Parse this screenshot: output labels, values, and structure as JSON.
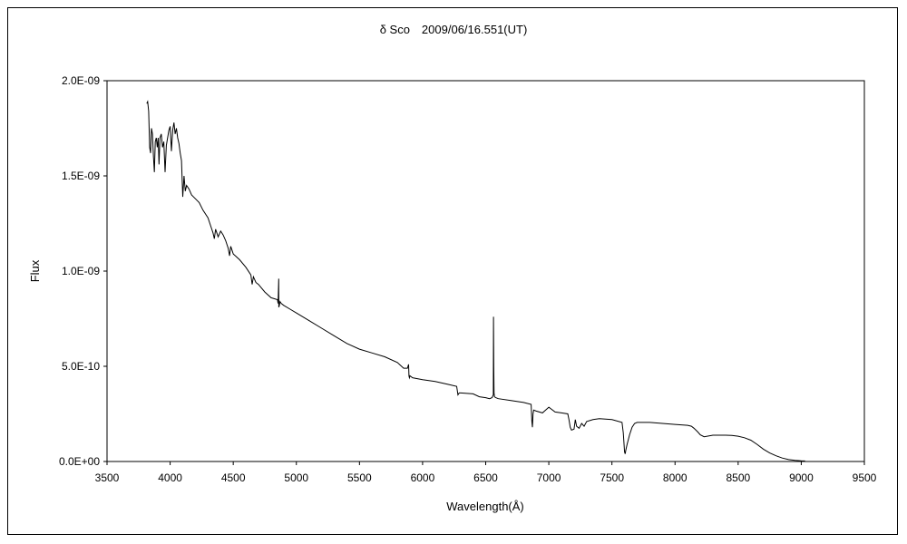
{
  "chart_data": {
    "type": "line",
    "title": "δ Sco　2009/06/16.551(UT)",
    "xlabel": "Wavelength(Å)",
    "ylabel": "Flux",
    "xlim": [
      3500,
      9500
    ],
    "ylim": [
      0,
      2e-09
    ],
    "x_ticks": [
      3500,
      4000,
      4500,
      5000,
      5500,
      6000,
      6500,
      7000,
      7500,
      8000,
      8500,
      9000,
      9500
    ],
    "x_tick_labels": [
      "3500",
      "4000",
      "4500",
      "5000",
      "5500",
      "6000",
      "6500",
      "7000",
      "7500",
      "8000",
      "8500",
      "9000",
      "9500"
    ],
    "y_ticks": [
      0,
      5e-10,
      1e-09,
      1.5e-09,
      2e-09
    ],
    "y_tick_labels": [
      "0.0E+00",
      "5.0E-10",
      "1.0E-09",
      "1.5E-09",
      "2.0E-09"
    ],
    "grid": false,
    "legend": "none",
    "line_color": "#000000",
    "series": [
      {
        "x": [
          3815,
          3822,
          3830,
          3838,
          3845,
          3852,
          3860,
          3868,
          3875,
          3882,
          3890,
          3898,
          3905,
          3912,
          3920,
          3930,
          3940,
          3950,
          3960,
          3970,
          3980,
          3990,
          4000,
          4010,
          4020,
          4030,
          4040,
          4050,
          4060,
          4070,
          4080,
          4090,
          4100,
          4110,
          4120,
          4130,
          4150,
          4170,
          4200,
          4230,
          4260,
          4300,
          4320,
          4340,
          4350,
          4360,
          4380,
          4400,
          4420,
          4440,
          4460,
          4471,
          4480,
          4500,
          4550,
          4600,
          4640,
          4650,
          4660,
          4680,
          4700,
          4750,
          4800,
          4850,
          4855,
          4860,
          4861,
          4865,
          4870,
          4880,
          4900,
          4950,
          5000,
          5100,
          5200,
          5300,
          5400,
          5500,
          5600,
          5700,
          5800,
          5850,
          5880,
          5889,
          5892,
          5896,
          5900,
          5920,
          6000,
          6100,
          6200,
          6270,
          6280,
          6290,
          6300,
          6400,
          6450,
          6500,
          6530,
          6550,
          6560,
          6562,
          6564,
          6566,
          6570,
          6580,
          6600,
          6700,
          6800,
          6860,
          6866,
          6870,
          6875,
          6880,
          6900,
          6950,
          7000,
          7050,
          7100,
          7150,
          7160,
          7170,
          7180,
          7200,
          7210,
          7220,
          7240,
          7260,
          7280,
          7300,
          7350,
          7400,
          7500,
          7580,
          7590,
          7595,
          7600,
          7605,
          7610,
          7620,
          7640,
          7660,
          7680,
          7700,
          7800,
          7900,
          8000,
          8100,
          8130,
          8150,
          8180,
          8200,
          8230,
          8300,
          8400,
          8450,
          8500,
          8550,
          8600,
          8650,
          8700,
          8750,
          8800,
          8850,
          8900,
          8950,
          9000,
          9030
        ],
        "y": [
          1.88e-09,
          1.89e-09,
          1.84e-09,
          1.65e-09,
          1.62e-09,
          1.75e-09,
          1.72e-09,
          1.6e-09,
          1.52e-09,
          1.68e-09,
          1.7e-09,
          1.65e-09,
          1.7e-09,
          1.56e-09,
          1.7e-09,
          1.72e-09,
          1.65e-09,
          1.68e-09,
          1.52e-09,
          1.66e-09,
          1.7e-09,
          1.74e-09,
          1.76e-09,
          1.63e-09,
          1.74e-09,
          1.78e-09,
          1.72e-09,
          1.75e-09,
          1.7e-09,
          1.67e-09,
          1.62e-09,
          1.58e-09,
          1.39e-09,
          1.5e-09,
          1.42e-09,
          1.45e-09,
          1.43e-09,
          1.4e-09,
          1.38e-09,
          1.36e-09,
          1.32e-09,
          1.28e-09,
          1.24e-09,
          1.2e-09,
          1.17e-09,
          1.22e-09,
          1.18e-09,
          1.21e-09,
          1.19e-09,
          1.16e-09,
          1.12e-09,
          1.08e-09,
          1.13e-09,
          1.09e-09,
          1.06e-09,
          1.02e-09,
          9.8e-10,
          9.3e-10,
          9.7e-10,
          9.4e-10,
          9.3e-10,
          8.9e-10,
          8.6e-10,
          8.5e-10,
          8.3e-10,
          9.6e-10,
          8.1e-10,
          8.2e-10,
          8.4e-10,
          8.3e-10,
          8.2e-10,
          8e-10,
          7.8e-10,
          7.4e-10,
          7e-10,
          6.6e-10,
          6.2e-10,
          5.9e-10,
          5.7e-10,
          5.5e-10,
          5.2e-10,
          4.9e-10,
          4.9e-10,
          5.1e-10,
          4.5e-10,
          4.4e-10,
          4.5e-10,
          4.4e-10,
          4.3e-10,
          4.2e-10,
          4.05e-10,
          3.95e-10,
          3.5e-10,
          3.6e-10,
          3.6e-10,
          3.55e-10,
          3.4e-10,
          3.35e-10,
          3.3e-10,
          3.35e-10,
          3.5e-10,
          7.6e-10,
          5e-10,
          3.6e-10,
          3.4e-10,
          3.35e-10,
          3.3e-10,
          3.2e-10,
          3.1e-10,
          3e-10,
          2.1e-10,
          1.8e-10,
          2.5e-10,
          2.7e-10,
          2.65e-10,
          2.55e-10,
          2.85e-10,
          2.6e-10,
          2.55e-10,
          2.5e-10,
          2.2e-10,
          1.8e-10,
          1.65e-10,
          1.7e-10,
          2.2e-10,
          1.85e-10,
          1.75e-10,
          2e-10,
          1.85e-10,
          2.1e-10,
          2.2e-10,
          2.25e-10,
          2.2e-10,
          2.05e-10,
          1.5e-10,
          1e-10,
          5e-11,
          4e-11,
          6e-11,
          9e-11,
          1.4e-10,
          1.8e-10,
          2e-10,
          2.05e-10,
          2.05e-10,
          2e-10,
          1.95e-10,
          1.9e-10,
          1.85e-10,
          1.75e-10,
          1.55e-10,
          1.4e-10,
          1.3e-10,
          1.38e-10,
          1.38e-10,
          1.37e-10,
          1.33e-10,
          1.25e-10,
          1.12e-10,
          9e-11,
          6.5e-11,
          4.5e-11,
          3e-11,
          1.8e-11,
          1e-11,
          6e-12,
          4e-12,
          3e-12
        ]
      }
    ]
  }
}
